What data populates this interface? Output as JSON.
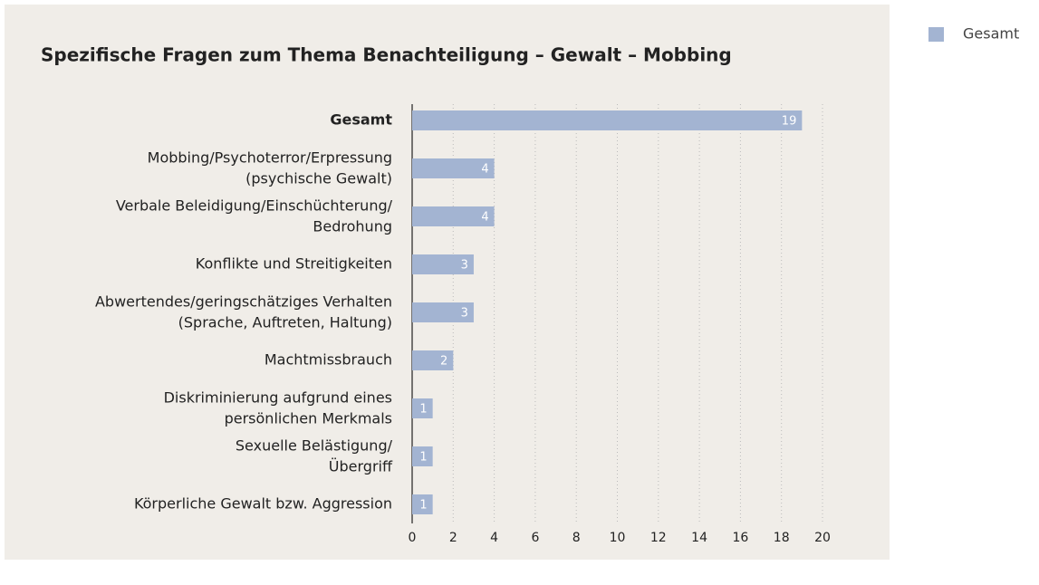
{
  "chart_data": {
    "type": "bar",
    "orientation": "horizontal",
    "title": "Spezifische Fragen zum Thema Benachteiligung – Gewalt – Mobbing",
    "categories": [
      "Gesamt",
      "Mobbing/Psychoterror/Erpressung\n(psychische Gewalt)",
      "Verbale Beleidigung/Einschüchterung/\nBedrohung",
      "Konflikte und Streitigkeiten",
      "Abwertendes/geringschätziges Verhalten\n(Sprache, Auftreten, Haltung)",
      "Machtmissbrauch",
      "Diskriminierung aufgrund eines\npersönlichen Merkmals",
      "Sexuelle Belästigung/\nÜbergriff",
      "Körperliche Gewalt bzw. Aggression"
    ],
    "series": [
      {
        "name": "Gesamt",
        "color": "#a3b4d2",
        "values": [
          19,
          4,
          4,
          3,
          3,
          2,
          1,
          1,
          1
        ]
      }
    ],
    "xlim": [
      0,
      20
    ],
    "xticks": [
      0,
      2,
      4,
      6,
      8,
      10,
      12,
      14,
      16,
      18,
      20
    ],
    "grid": true,
    "legend": "top-right"
  }
}
